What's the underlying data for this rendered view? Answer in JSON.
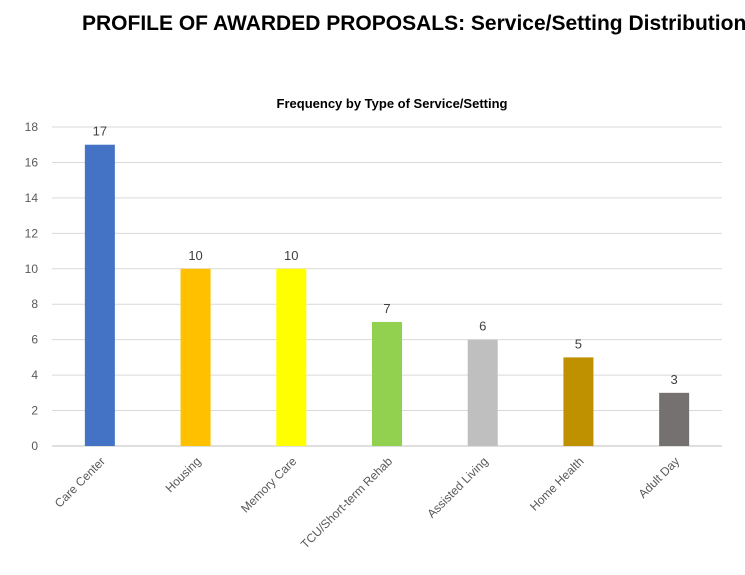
{
  "page": {
    "title": "PROFILE OF AWARDED PROPOSALS: Service/Setting Distribution"
  },
  "chart_data": {
    "type": "bar",
    "title": "Frequency by Type of Service/Setting",
    "xlabel": "",
    "ylabel": "",
    "ylim": [
      0,
      18
    ],
    "yticks": [
      0,
      2,
      4,
      6,
      8,
      10,
      12,
      14,
      16,
      18
    ],
    "grid": true,
    "legend": "none",
    "categories": [
      "Care Center",
      "Housing",
      "Memory Care",
      "TCU/Short-term Rehab",
      "Assisted Living",
      "Home Health",
      "Adult Day"
    ],
    "values": [
      17,
      10,
      10,
      7,
      6,
      5,
      3
    ],
    "colors": [
      "#4472c4",
      "#ffc000",
      "#ffff00",
      "#92d050",
      "#bfbfbf",
      "#bf9000",
      "#767171"
    ]
  }
}
